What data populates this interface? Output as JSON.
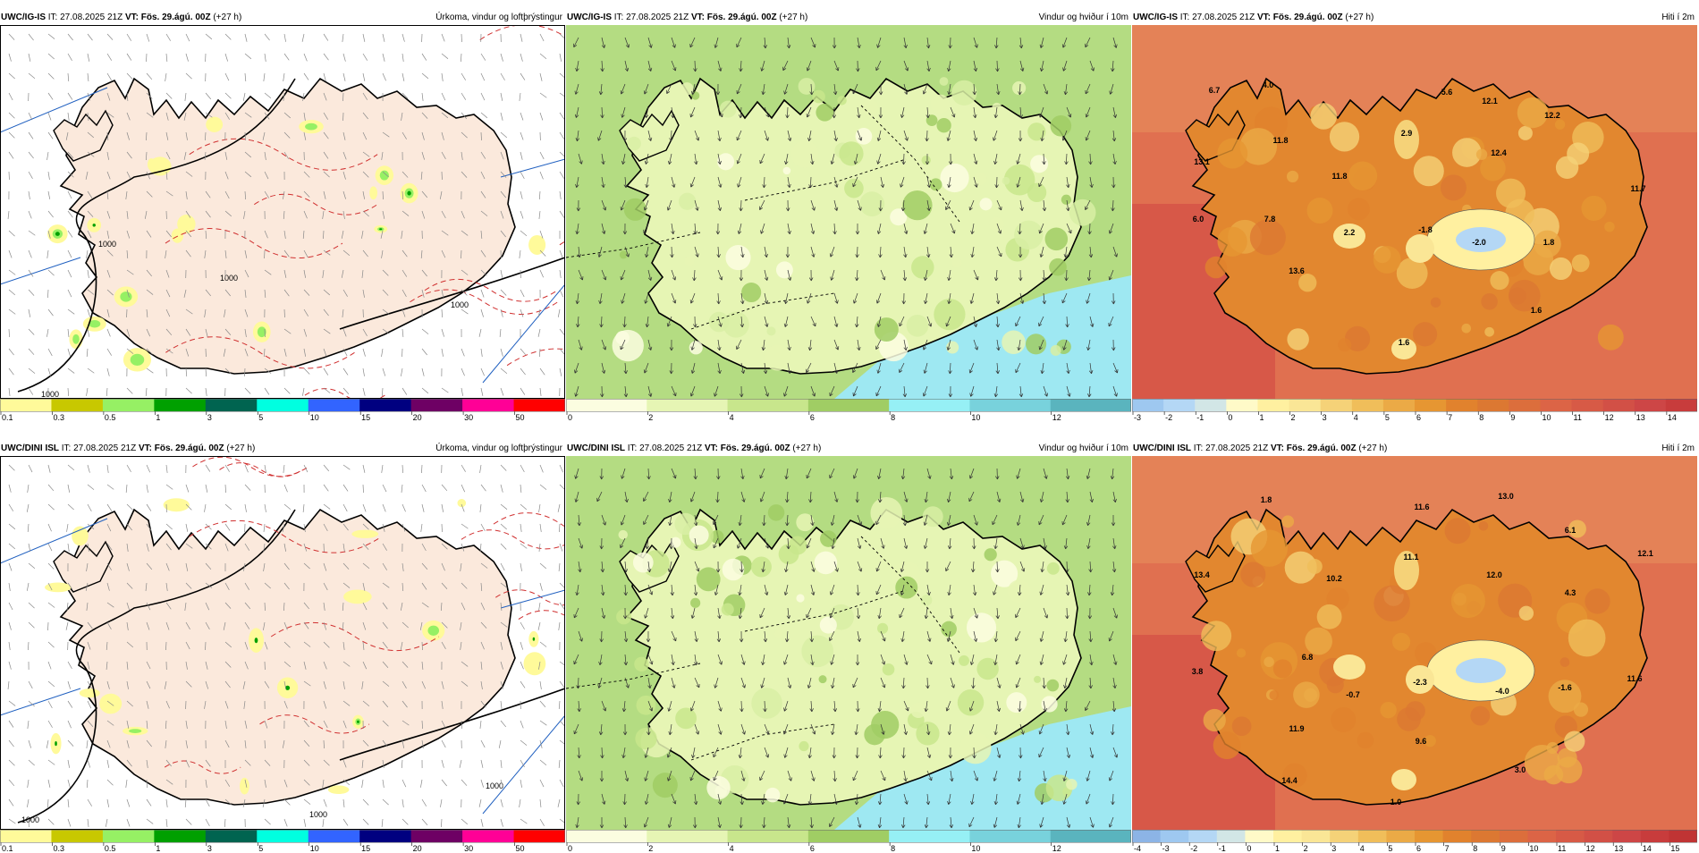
{
  "rows": [
    {
      "panels": [
        {
          "type": "precip",
          "model": "UWC/IG-IS",
          "it": "IT: 27.08.2025 21Z",
          "vt_label": "VT:",
          "vt": "Fös. 29.ágú. 00Z",
          "lead": "(+27 h)",
          "title": "Úrkoma, vindur og loftþrýstingur",
          "isobars": [
            "1000",
            "1000",
            "1000",
            "1000"
          ],
          "colorbar": {
            "ticks": [
              "0.1",
              "0.3",
              "0.5",
              "1",
              "3",
              "5",
              "10",
              "15",
              "20",
              "30",
              "50"
            ],
            "colors": [
              "#fffa9a",
              "#c8c800",
              "#96f064",
              "#00a000",
              "#006450",
              "#00ffe0",
              "#3264ff",
              "#000080",
              "#6e0064",
              "#ff0096",
              "#ff0000"
            ]
          }
        },
        {
          "type": "wind",
          "model": "UWC/IG-IS",
          "it": "IT: 27.08.2025 21Z",
          "vt_label": "VT:",
          "vt": "Fös. 29.ágú. 00Z",
          "lead": "(+27 h)",
          "title": "Vindur og hviður í 10m",
          "colorbar": {
            "ticks": [
              "0",
              "2",
              "4",
              "6",
              "8",
              "10",
              "12"
            ],
            "colors": [
              "#fbfde0",
              "#e6f5b4",
              "#c8e68c",
              "#a0cd64",
              "#96f0f5",
              "#78d2dc",
              "#5ab4be"
            ]
          }
        },
        {
          "type": "temp",
          "model": "UWC/IG-IS",
          "it": "IT: 27.08.2025 21Z",
          "vt_label": "VT:",
          "vt": "Fös. 29.ágú. 00Z",
          "lead": "(+27 h)",
          "title": "Hiti í 2m",
          "labels": [
            "6.7",
            "4.0",
            "5.6",
            "12.1",
            "12.2",
            "11.8",
            "2.9",
            "13.1",
            "12.4",
            "11.8",
            "11.7",
            "6.0",
            "7.8",
            "2.2",
            "-1.8",
            "-2.0",
            "1.8",
            "13.6",
            "1.6",
            "1.6"
          ],
          "colorbar": {
            "ticks": [
              "-3",
              "-2",
              "-1",
              "0",
              "1",
              "2",
              "3",
              "4",
              "5",
              "6",
              "7",
              "8",
              "9",
              "10",
              "11",
              "12",
              "13",
              "14"
            ],
            "colors": [
              "#9ec8f0",
              "#b4d7f5",
              "#d2e6e6",
              "#fffac8",
              "#fff0a0",
              "#fae696",
              "#f5d278",
              "#f0be5a",
              "#ebaa46",
              "#e69632",
              "#e1822d",
              "#dc7832",
              "#dc6e3c",
              "#dc6446",
              "#d75a46",
              "#d25046",
              "#cd4646",
              "#c83c3c"
            ]
          }
        }
      ]
    },
    {
      "panels": [
        {
          "type": "precip",
          "model": "UWC/DINI ISL",
          "it": "IT: 27.08.2025 21Z",
          "vt_label": "VT:",
          "vt": "Fös. 29.ágú. 00Z",
          "lead": "(+27 h)",
          "title": "Úrkoma, vindur og loftþrýstingur",
          "isobars": [
            "1000",
            "1000",
            "1000"
          ],
          "colorbar": {
            "ticks": [
              "0.1",
              "0.3",
              "0.5",
              "1",
              "3",
              "5",
              "10",
              "15",
              "20",
              "30",
              "50"
            ],
            "colors": [
              "#fffa9a",
              "#c8c800",
              "#96f064",
              "#00a000",
              "#006450",
              "#00ffe0",
              "#3264ff",
              "#000080",
              "#6e0064",
              "#ff0096",
              "#ff0000"
            ]
          }
        },
        {
          "type": "wind",
          "model": "UWC/DINI ISL",
          "it": "IT: 27.08.2025 21Z",
          "vt_label": "VT:",
          "vt": "Fös. 29.ágú. 00Z",
          "lead": "(+27 h)",
          "title": "Vindur og hviður í 10m",
          "colorbar": {
            "ticks": [
              "0",
              "2",
              "4",
              "6",
              "8",
              "10",
              "12"
            ],
            "colors": [
              "#fbfde0",
              "#e6f5b4",
              "#c8e68c",
              "#a0cd64",
              "#96f0f5",
              "#78d2dc",
              "#5ab4be"
            ]
          }
        },
        {
          "type": "temp",
          "model": "UWC/DINI ISL",
          "it": "IT: 27.08.2025 21Z",
          "vt_label": "VT:",
          "vt": "Fös. 29.ágú. 00Z",
          "lead": "(+27 h)",
          "title": "Hiti í 2m",
          "labels": [
            "1.8",
            "11.6",
            "13.0",
            "6.1",
            "12.1",
            "13.4",
            "10.2",
            "11.1",
            "12.0",
            "4.3",
            "3.8",
            "6.8",
            "-0.7",
            "-2.3",
            "-4.0",
            "-1.6",
            "11.6",
            "11.9",
            "9.6",
            "3.0",
            "14.4",
            "1.0"
          ],
          "colorbar": {
            "ticks": [
              "-4",
              "-3",
              "-2",
              "-1",
              "0",
              "1",
              "2",
              "3",
              "4",
              "5",
              "6",
              "7",
              "8",
              "9",
              "10",
              "11",
              "12",
              "13",
              "14",
              "15"
            ],
            "colors": [
              "#8cb4e6",
              "#9ec8f0",
              "#b4d7f5",
              "#d2e6e6",
              "#fffac8",
              "#fff0a0",
              "#fae696",
              "#f5d278",
              "#f0be5a",
              "#ebaa46",
              "#e69632",
              "#e1822d",
              "#dc7832",
              "#dc6e3c",
              "#dc6446",
              "#d75a46",
              "#d25046",
              "#cd4646",
              "#c83c3c",
              "#c03434"
            ]
          }
        }
      ]
    }
  ]
}
